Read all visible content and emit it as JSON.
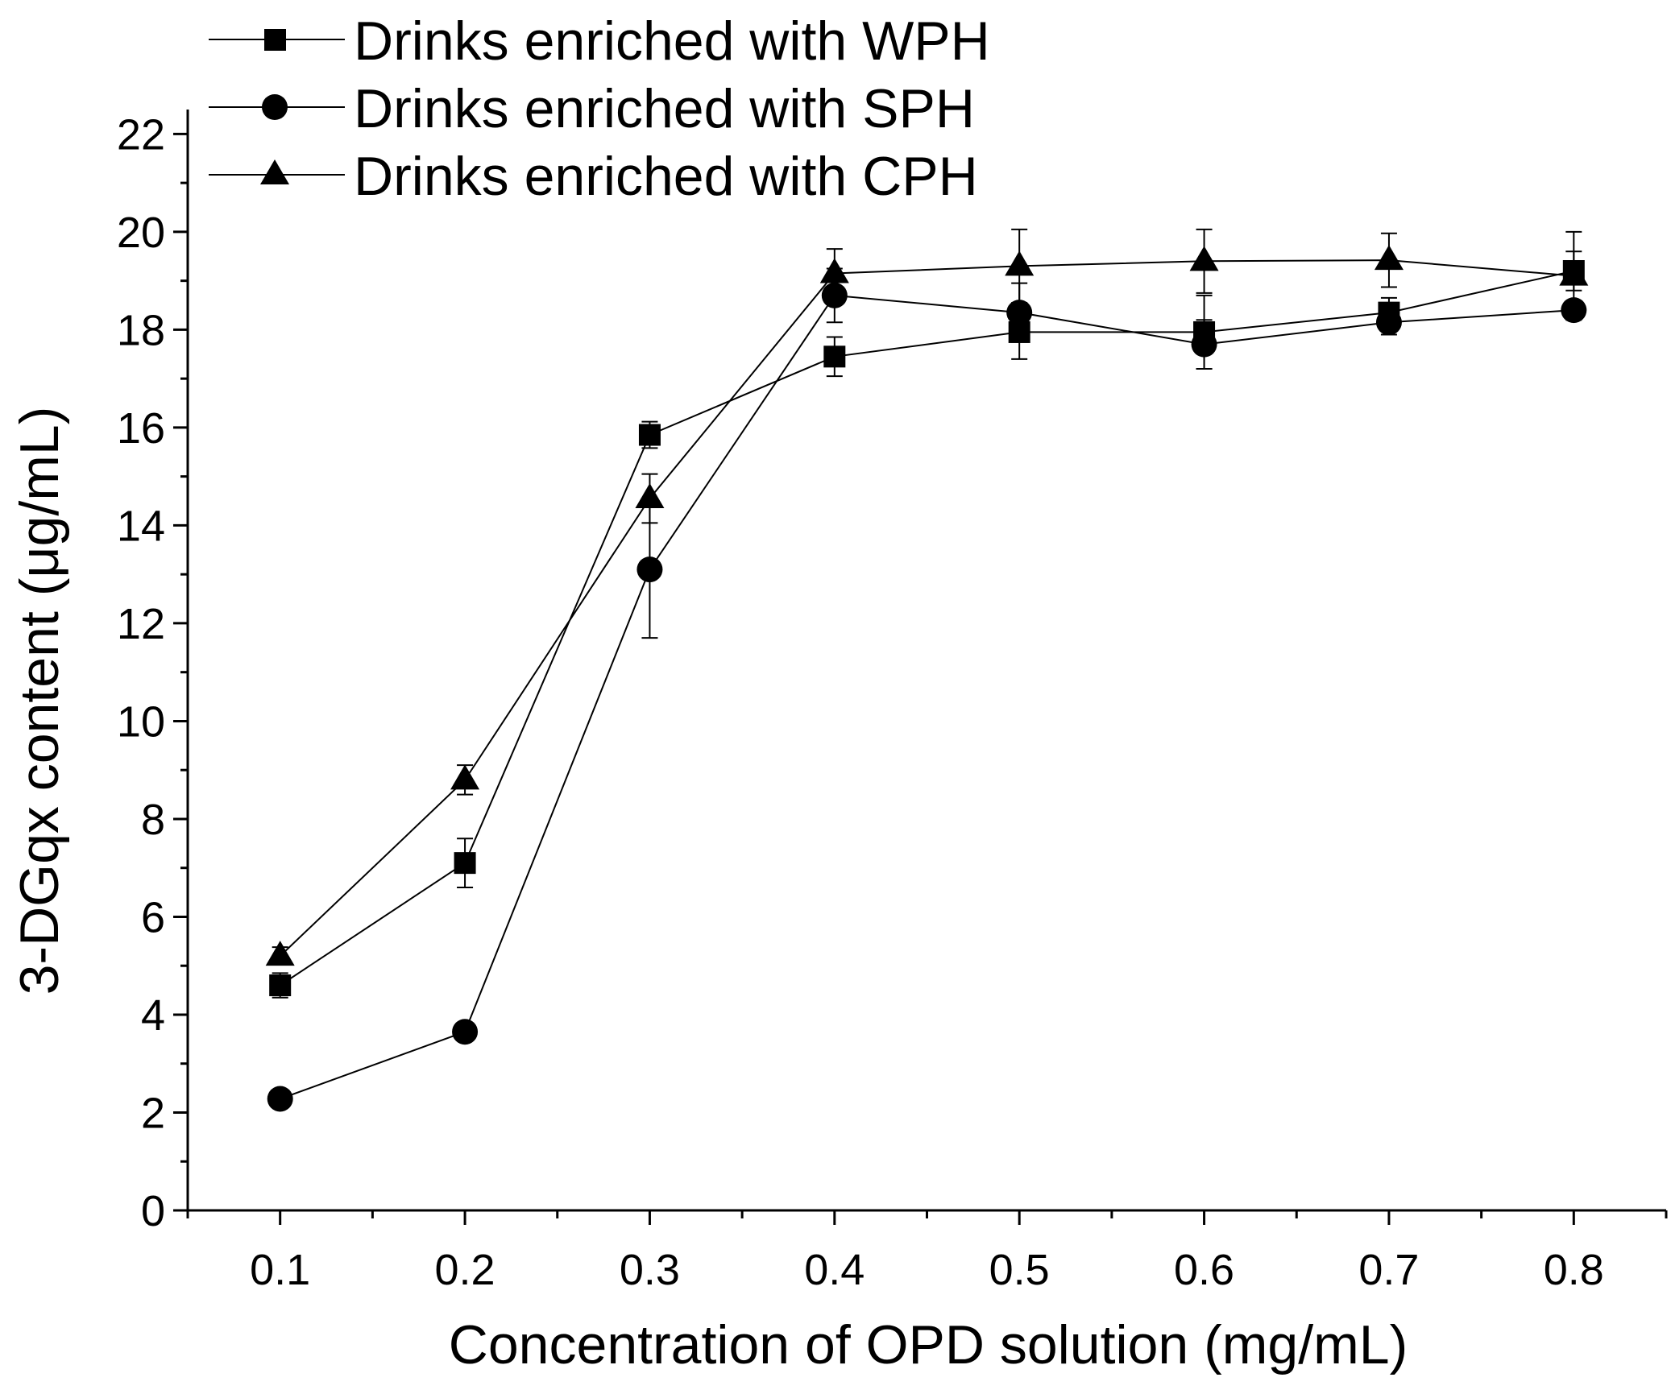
{
  "chart_data": {
    "type": "line",
    "xlabel": "Concentration of OPD solution (mg/mL)",
    "ylabel": "3-DGqx content (μg/mL)",
    "x": [
      0.1,
      0.2,
      0.3,
      0.4,
      0.5,
      0.6,
      0.7,
      0.8
    ],
    "xlim": [
      0.05,
      0.85
    ],
    "ylim": [
      0,
      22.5
    ],
    "x_ticks": [
      0.1,
      0.2,
      0.3,
      0.4,
      0.5,
      0.6,
      0.7,
      0.8
    ],
    "x_tick_labels": [
      "0.1",
      "0.2",
      "0.3",
      "0.4",
      "0.5",
      "0.6",
      "0.7",
      "0.8"
    ],
    "x_minor_step": 0.05,
    "y_ticks": [
      0,
      2,
      4,
      6,
      8,
      10,
      12,
      14,
      16,
      18,
      20,
      22
    ],
    "y_tick_labels": [
      "0",
      "2",
      "4",
      "6",
      "8",
      "10",
      "12",
      "14",
      "16",
      "18",
      "20",
      "22"
    ],
    "y_minor_step": 1,
    "grid": false,
    "legend_position": "top-left",
    "series": [
      {
        "name": "Drinks enriched with WPH",
        "marker": "square",
        "values": [
          4.6,
          7.1,
          15.85,
          17.45,
          17.95,
          17.95,
          18.35,
          19.2
        ],
        "errors": [
          0.25,
          0.5,
          0.27,
          0.4,
          0.55,
          0.75,
          0.3,
          0.4
        ]
      },
      {
        "name": "Drinks enriched with SPH",
        "marker": "circle",
        "values": [
          2.28,
          3.65,
          13.1,
          18.7,
          18.35,
          17.7,
          18.15,
          18.4
        ],
        "errors": [
          0.1,
          0.15,
          1.4,
          0.55,
          0.6,
          0.5,
          0.25,
          0.1
        ]
      },
      {
        "name": "Drinks enriched with CPH",
        "marker": "triangle",
        "values": [
          5.2,
          8.8,
          14.55,
          19.15,
          19.3,
          19.4,
          19.42,
          19.1
        ],
        "errors": [
          0.18,
          0.3,
          0.5,
          0.5,
          0.75,
          0.65,
          0.55,
          0.9
        ]
      }
    ]
  },
  "colors": {
    "ink": "#000000",
    "background": "#ffffff"
  }
}
